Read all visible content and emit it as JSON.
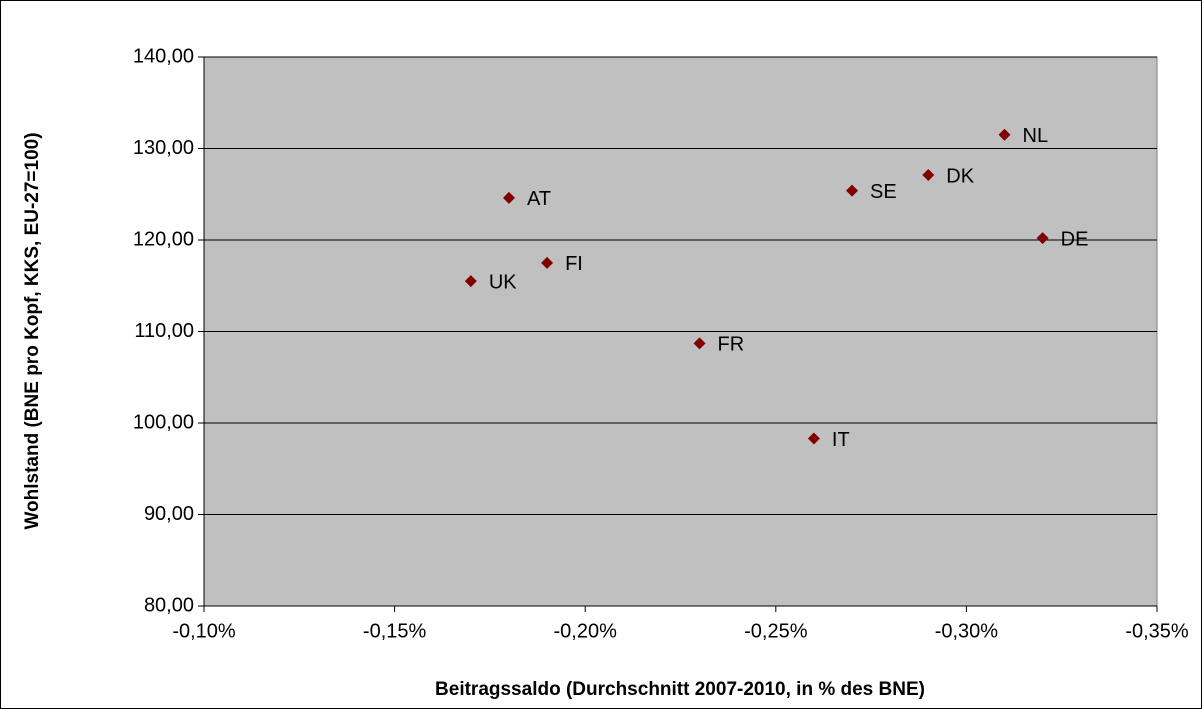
{
  "chart_data": {
    "type": "scatter",
    "x_label": "Beitragssaldo (Durchschnitt 2007-2010, in % des BNE)",
    "y_label": "Wohlstand (BNE pro Kopf, KKS, EU-27=100)",
    "labels": [
      "NL",
      "DK",
      "SE",
      "DE",
      "AT",
      "FI",
      "UK",
      "FR",
      "IT"
    ],
    "x": [
      -0.31,
      -0.29,
      -0.27,
      -0.32,
      -0.18,
      -0.19,
      -0.17,
      -0.23,
      -0.26
    ],
    "values": [
      131.5,
      127.1,
      125.4,
      120.2,
      124.6,
      117.5,
      115.5,
      108.7,
      98.3
    ],
    "color": "#800000",
    "xlim": [
      -0.1,
      -0.35
    ],
    "xticks": [
      {
        "value": -0.1,
        "label": "-0,10%"
      },
      {
        "value": -0.15,
        "label": "-0,15%"
      },
      {
        "value": -0.2,
        "label": "-0,20%"
      },
      {
        "value": -0.25,
        "label": "-0,25%"
      },
      {
        "value": -0.3,
        "label": "-0,30%"
      },
      {
        "value": -0.35,
        "label": "-0,35%"
      }
    ],
    "ylim": [
      80,
      140
    ],
    "yticks": [
      {
        "value": 80,
        "label": "80,00"
      },
      {
        "value": 90,
        "label": "90,00"
      },
      {
        "value": 100,
        "label": "100,00"
      },
      {
        "value": 110,
        "label": "110,00"
      },
      {
        "value": 120,
        "label": "120,00"
      },
      {
        "value": 130,
        "label": "130,00"
      },
      {
        "value": 140,
        "label": "140,00"
      }
    ],
    "grid": true
  }
}
